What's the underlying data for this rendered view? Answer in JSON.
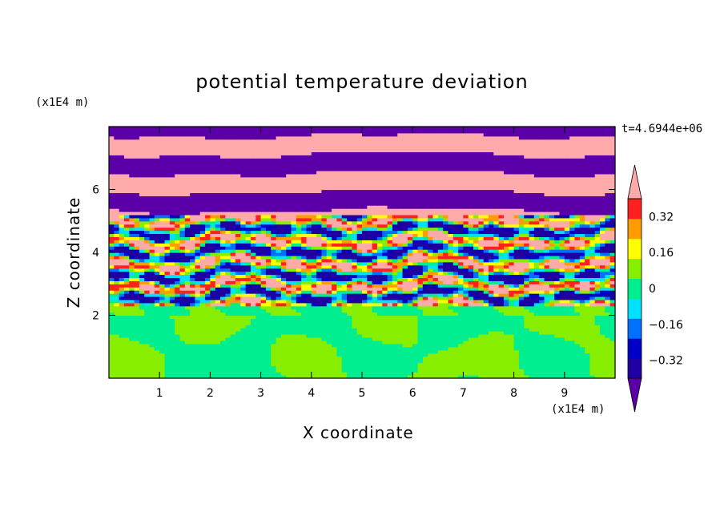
{
  "chart_data": {
    "type": "heatmap",
    "title": "potential temperature deviation",
    "xlabel": "X coordinate",
    "ylabel": "Z coordinate",
    "x_unit": "(x1E4 m)",
    "y_unit": "(x1E4 m)",
    "time_label": "t=4.6944e+06",
    "xlim": [
      0,
      10
    ],
    "ylim": [
      0,
      8
    ],
    "x_ticks": [
      "1",
      "2",
      "3",
      "4",
      "5",
      "6",
      "7",
      "8",
      "9"
    ],
    "y_ticks": [
      "2",
      "4",
      "6"
    ],
    "colorbar": {
      "levels": [
        -0.4,
        -0.32,
        -0.24,
        -0.16,
        -0.08,
        0,
        0.08,
        0.16,
        0.24,
        0.32,
        0.4
      ],
      "labels": [
        "-0.32",
        "-0.16",
        "0",
        "0.16",
        "0.32"
      ],
      "colors": [
        "#5b00a8",
        "#2000a0",
        "#0000c8",
        "#0070ff",
        "#00e0ff",
        "#00ee90",
        "#88ee00",
        "#ffff00",
        "#ff9c00",
        "#ff2020",
        "#ffaaaa"
      ],
      "extend": "both"
    },
    "bands": [
      {
        "z0": 0.0,
        "z1": 2.0,
        "dominant": "#00ee90",
        "secondary": "#88ee00"
      },
      {
        "z0": 2.0,
        "z1": 2.3,
        "dominant": "#88ee00",
        "secondary": "#00ee90"
      },
      {
        "z0": 2.3,
        "z1": 5.2,
        "dominant": "mixed",
        "secondary": "mixed"
      },
      {
        "z0": 5.2,
        "z1": 8.0,
        "dominant": "#5b00a8",
        "secondary": "#ffaaaa"
      }
    ]
  }
}
